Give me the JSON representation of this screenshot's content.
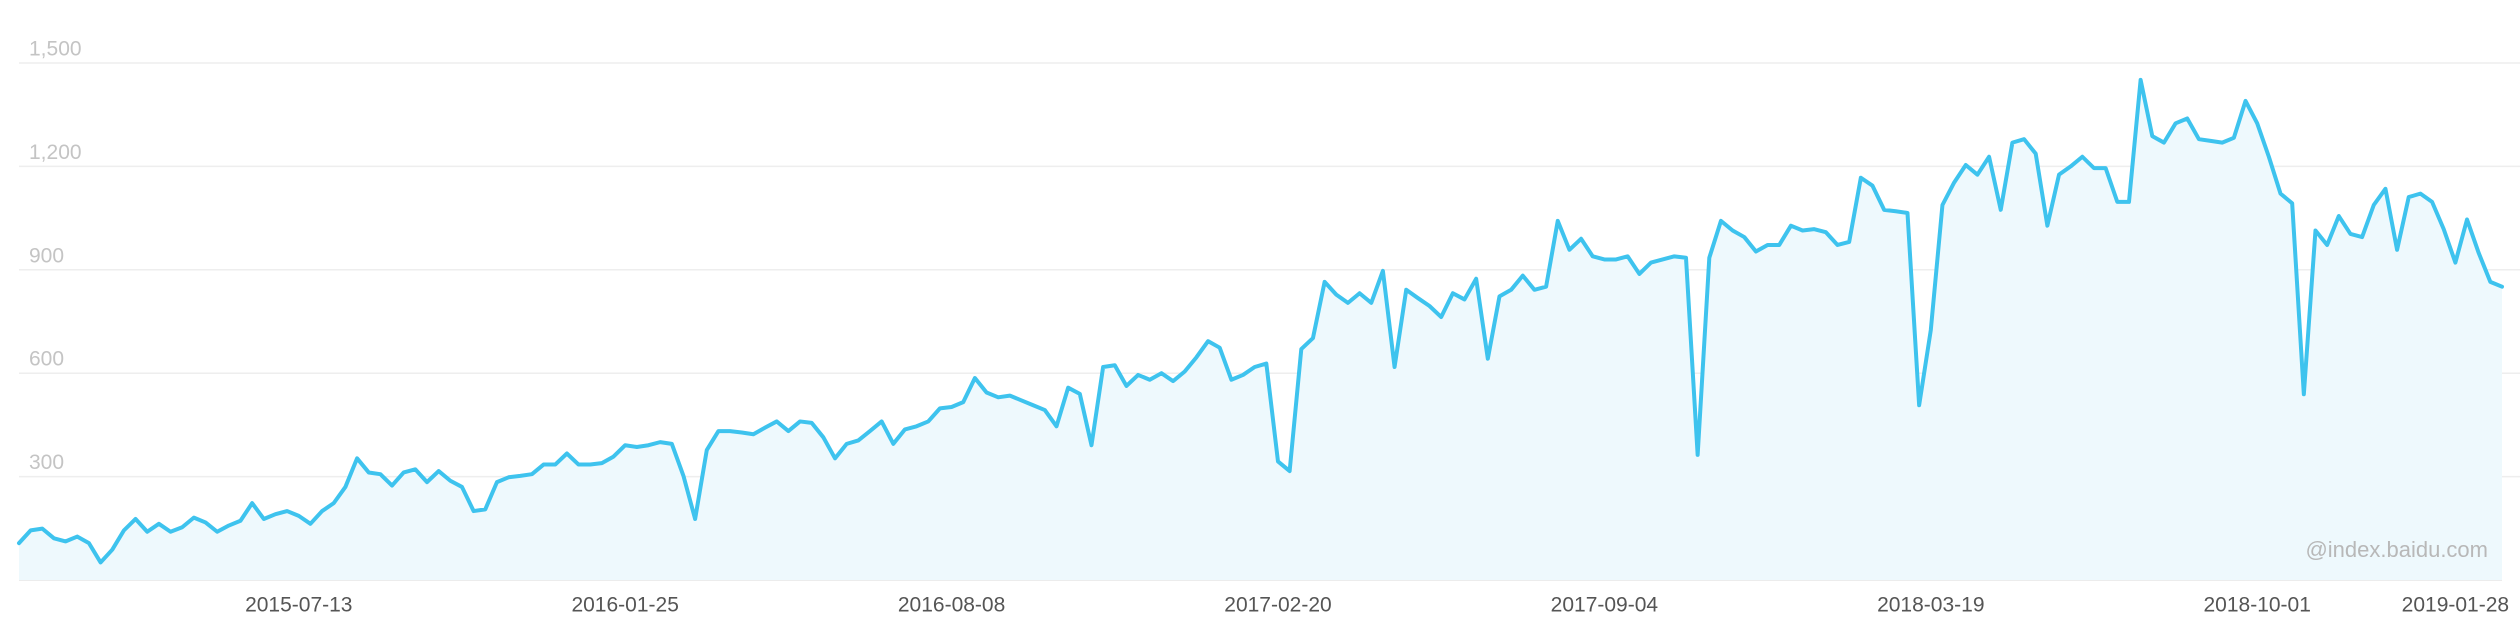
{
  "chart_data": {
    "type": "line",
    "watermark": "@index.baidu.com",
    "categories": [
      null,
      null,
      null,
      null,
      null,
      null,
      null,
      null,
      null,
      null,
      null,
      null,
      null,
      null,
      null,
      null,
      null,
      null,
      null,
      null,
      null,
      null,
      null,
      null,
      "2015-07-13",
      null,
      null,
      null,
      null,
      null,
      null,
      null,
      null,
      null,
      null,
      null,
      null,
      null,
      null,
      null,
      null,
      null,
      null,
      null,
      null,
      null,
      null,
      null,
      null,
      null,
      null,
      null,
      "2016-01-25",
      null,
      null,
      null,
      null,
      null,
      null,
      null,
      null,
      null,
      null,
      null,
      null,
      null,
      null,
      null,
      null,
      null,
      null,
      null,
      null,
      null,
      null,
      null,
      null,
      null,
      null,
      null,
      "2016-08-08",
      null,
      null,
      null,
      null,
      null,
      null,
      null,
      null,
      null,
      null,
      null,
      null,
      null,
      null,
      null,
      null,
      null,
      null,
      null,
      null,
      null,
      null,
      null,
      null,
      null,
      null,
      null,
      "2017-02-20",
      null,
      null,
      null,
      null,
      null,
      null,
      null,
      null,
      null,
      null,
      null,
      null,
      null,
      null,
      null,
      null,
      null,
      null,
      null,
      null,
      null,
      null,
      null,
      null,
      null,
      null,
      null,
      "2017-09-04",
      null,
      null,
      null,
      null,
      null,
      null,
      null,
      null,
      null,
      null,
      null,
      null,
      null,
      null,
      null,
      null,
      null,
      null,
      null,
      null,
      null,
      null,
      null,
      null,
      null,
      null,
      null,
      "2018-03-19",
      null,
      null,
      null,
      null,
      null,
      null,
      null,
      null,
      null,
      null,
      null,
      null,
      null,
      null,
      null,
      null,
      null,
      null,
      null,
      null,
      null,
      null,
      null,
      null,
      null,
      null,
      null,
      "2018-10-01",
      null,
      null,
      null,
      null,
      null,
      null,
      null,
      null,
      null,
      null,
      null,
      null,
      null,
      null,
      null,
      null,
      "2019-01-28",
      null,
      null,
      null,
      null
    ],
    "series": [
      {
        "color": "#3ec3ee",
        "area_color": "#eef9fd",
        "values": [
          107,
          144,
          149,
          121,
          112,
          126,
          107,
          51,
          88,
          144,
          177,
          140,
          163,
          140,
          153,
          181,
          167,
          140,
          158,
          172,
          223,
          177,
          191,
          200,
          186,
          163,
          200,
          223,
          270,
          353,
          312,
          307,
          274,
          312,
          321,
          284,
          316,
          288,
          270,
          200,
          205,
          284,
          298,
          302,
          307,
          335,
          335,
          367,
          335,
          335,
          339,
          358,
          391,
          386,
          391,
          400,
          395,
          302,
          177,
          377,
          432,
          432,
          428,
          423,
          442,
          460,
          432,
          460,
          456,
          414,
          353,
          395,
          405,
          432,
          460,
          395,
          437,
          446,
          460,
          498,
          502,
          516,
          586,
          544,
          530,
          535,
          521,
          507,
          493,
          446,
          558,
          540,
          391,
          618,
          623,
          563,
          595,
          581,
          600,
          577,
          605,
          646,
          693,
          674,
          581,
          595,
          618,
          628,
          344,
          316,
          670,
          702,
          865,
          828,
          804,
          832,
          804,
          897,
          618,
          842,
          818,
          795,
          763,
          832,
          814,
          874,
          642,
          823,
          842,
          883,
          842,
          851,
          1042,
          958,
          990,
          939,
          930,
          930,
          939,
          888,
          921,
          930,
          939,
          935,
          363,
          935,
          1042,
          1014,
          995,
          953,
          972,
          972,
          1028,
          1014,
          1018,
          1009,
          972,
          981,
          1167,
          1144,
          1074,
          1070,
          1065,
          507,
          725,
          1088,
          1153,
          1204,
          1176,
          1228,
          1074,
          1269,
          1279,
          1237,
          1028,
          1176,
          1200,
          1228,
          1195,
          1195,
          1097,
          1097,
          1451,
          1288,
          1269,
          1325,
          1339,
          1279,
          1274,
          1269,
          1283,
          1390,
          1325,
          1228,
          1121,
          1093,
          539,
          1014,
          972,
          1056,
          1004,
          995,
          1088,
          1135,
          958,
          1111,
          1121,
          1097,
          1018,
          921,
          1046,
          949,
          865,
          851
        ]
      }
    ],
    "ylim": [
      0,
      1500
    ],
    "yticks": [
      300,
      600,
      900,
      {
        "value": 1200,
        "label": "1,200"
      },
      {
        "value": 1500,
        "label": "1,500"
      }
    ],
    "grid": true
  }
}
